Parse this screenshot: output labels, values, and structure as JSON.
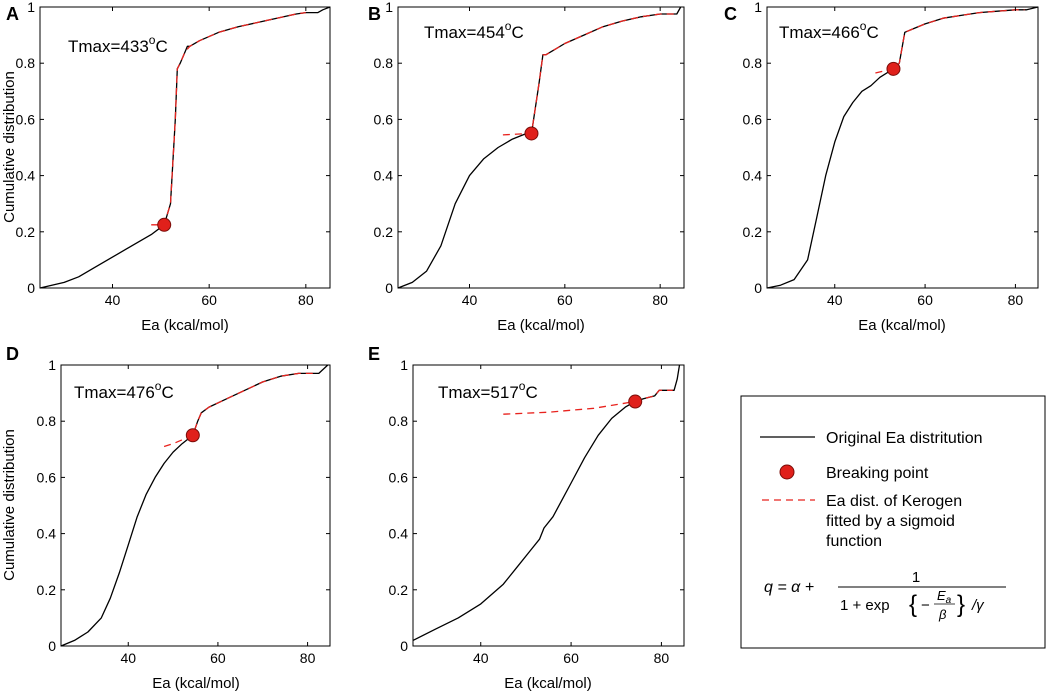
{
  "figure": {
    "ylabel": "Cumulative distribution",
    "xlabel": "Ea (kcal/mol)"
  },
  "colors": {
    "original": "#000000",
    "fit": "#e8231e",
    "point_fill": "#e0201b",
    "point_stroke": "#7a0c08"
  },
  "legend": {
    "original_label": "Original Ea distritution",
    "breaking_label": "Breaking point",
    "fit_label_line1": "Ea dist. of Kerogen",
    "fit_label_line2": "fitted by a sigmoid",
    "fit_label_line3": "function",
    "equation": {
      "lhs": "q = α +",
      "numerator": "1",
      "denominator_prefix": "1 + exp",
      "minus": "−",
      "frac_num": "E",
      "frac_num_sub": "a",
      "frac_den": "β",
      "suffix": "/γ"
    }
  },
  "chart_data": [
    {
      "panel": "A",
      "type": "line",
      "tmax_label": "Tmax=433",
      "tmax_sup": "o",
      "tmax_unit": "C",
      "xlabel": "Ea (kcal/mol)",
      "ylabel": "Cumulative distribution",
      "xlim": [
        25,
        85
      ],
      "ylim": [
        0,
        1
      ],
      "xticks": [
        40,
        60,
        80
      ],
      "yticks": [
        0,
        0.2,
        0.4,
        0.6,
        0.8,
        1
      ],
      "ytick_labels": [
        "0",
        "0.2",
        "0.4",
        "0.6",
        "0.8",
        "1"
      ],
      "series": [
        {
          "name": "Original Ea distritution",
          "x": [
            25,
            30,
            33,
            36,
            40,
            44,
            48,
            50.7,
            52,
            53,
            53.4,
            54,
            55,
            55.5,
            56,
            58,
            62,
            66,
            70,
            74,
            78,
            80,
            82.5,
            83.5,
            85
          ],
          "y": [
            0,
            0.02,
            0.04,
            0.07,
            0.11,
            0.15,
            0.19,
            0.225,
            0.3,
            0.6,
            0.78,
            0.8,
            0.84,
            0.86,
            0.86,
            0.88,
            0.91,
            0.93,
            0.945,
            0.96,
            0.975,
            0.98,
            0.98,
            0.99,
            1.0
          ]
        },
        {
          "name": "Ea dist. of Kerogen fitted by a sigmoid function",
          "x": [
            48,
            50.7,
            52,
            53,
            53.4,
            54,
            55,
            56,
            58,
            62,
            66,
            70,
            74,
            78,
            80
          ],
          "y": [
            0.225,
            0.225,
            0.3,
            0.6,
            0.78,
            0.8,
            0.84,
            0.86,
            0.88,
            0.91,
            0.93,
            0.945,
            0.96,
            0.975,
            0.98
          ]
        }
      ],
      "breaking_point": {
        "x": 50.7,
        "y": 0.225
      }
    },
    {
      "panel": "B",
      "type": "line",
      "tmax_label": "Tmax=454",
      "tmax_sup": "o",
      "tmax_unit": "C",
      "xlabel": "Ea (kcal/mol)",
      "ylabel": "",
      "xlim": [
        25,
        85
      ],
      "ylim": [
        0,
        1
      ],
      "xticks": [
        40,
        60,
        80
      ],
      "yticks": [
        0,
        0.2,
        0.4,
        0.6,
        0.8,
        1
      ],
      "ytick_labels": [
        "0",
        "0.2",
        "0.4",
        "0.6",
        "0.8",
        "1"
      ],
      "series": [
        {
          "name": "Original Ea distritution",
          "x": [
            25,
            28,
            31,
            34,
            37,
            40,
            43,
            46,
            49,
            52,
            53,
            54.6,
            55.4,
            56,
            58,
            60,
            64,
            68,
            72,
            76,
            80,
            83.5,
            84.3
          ],
          "y": [
            0,
            0.02,
            0.06,
            0.15,
            0.3,
            0.4,
            0.46,
            0.5,
            0.53,
            0.55,
            0.55,
            0.73,
            0.83,
            0.83,
            0.85,
            0.87,
            0.9,
            0.93,
            0.95,
            0.965,
            0.975,
            0.975,
            1.0
          ]
        },
        {
          "name": "Ea dist. of Kerogen fitted by a sigmoid function",
          "x": [
            47,
            53,
            54.6,
            55.4,
            56,
            58,
            60,
            64,
            68,
            72,
            76,
            80,
            83
          ],
          "y": [
            0.545,
            0.55,
            0.73,
            0.83,
            0.83,
            0.85,
            0.87,
            0.9,
            0.93,
            0.95,
            0.965,
            0.975,
            0.975
          ]
        }
      ],
      "breaking_point": {
        "x": 53,
        "y": 0.55
      }
    },
    {
      "panel": "C",
      "type": "line",
      "tmax_label": "Tmax=466",
      "tmax_sup": "o",
      "tmax_unit": "C",
      "xlabel": "Ea (kcal/mol)",
      "ylabel": "",
      "xlim": [
        25,
        85
      ],
      "ylim": [
        0,
        1
      ],
      "xticks": [
        40,
        60,
        80
      ],
      "yticks": [
        0,
        0.2,
        0.4,
        0.6,
        0.8,
        1
      ],
      "ytick_labels": [
        "0",
        "0.2",
        "0.4",
        "0.6",
        "0.8",
        "1"
      ],
      "series": [
        {
          "name": "Original Ea distritution",
          "x": [
            25,
            28,
            31,
            34,
            36,
            38,
            40,
            42,
            44,
            46,
            48,
            50,
            53,
            54.3,
            55.5,
            57,
            60,
            64,
            68,
            72,
            76,
            80,
            82.5,
            85
          ],
          "y": [
            0,
            0.01,
            0.03,
            0.1,
            0.25,
            0.4,
            0.52,
            0.61,
            0.66,
            0.7,
            0.72,
            0.75,
            0.78,
            0.8,
            0.91,
            0.92,
            0.94,
            0.96,
            0.97,
            0.98,
            0.985,
            0.99,
            0.99,
            1.0
          ]
        },
        {
          "name": "Ea dist. of Kerogen fitted by a sigmoid function",
          "x": [
            49,
            53,
            54.3,
            55.5,
            57,
            60,
            64,
            68,
            72,
            76,
            80,
            82
          ],
          "y": [
            0.765,
            0.78,
            0.8,
            0.91,
            0.92,
            0.94,
            0.96,
            0.97,
            0.98,
            0.985,
            0.99,
            0.99
          ]
        }
      ],
      "breaking_point": {
        "x": 53,
        "y": 0.78
      }
    },
    {
      "panel": "D",
      "type": "line",
      "tmax_label": "Tmax=476",
      "tmax_sup": "o",
      "tmax_unit": "C",
      "xlabel": "Ea (kcal/mol)",
      "ylabel": "Cumulative distribution",
      "xlim": [
        25,
        85
      ],
      "ylim": [
        0,
        1
      ],
      "xticks": [
        40,
        60,
        80
      ],
      "yticks": [
        0,
        0.2,
        0.4,
        0.6,
        0.8,
        1
      ],
      "ytick_labels": [
        "0",
        "0.2",
        "0.4",
        "0.6",
        "0.8",
        "1"
      ],
      "series": [
        {
          "name": "Original Ea distritution",
          "x": [
            25,
            28,
            31,
            34,
            36,
            38,
            40,
            42,
            44,
            46,
            48,
            50,
            52,
            54.4,
            55.5,
            56.3,
            58,
            62,
            66,
            70,
            74,
            78,
            82.5,
            84.5
          ],
          "y": [
            0,
            0.02,
            0.05,
            0.1,
            0.17,
            0.26,
            0.36,
            0.46,
            0.54,
            0.6,
            0.65,
            0.69,
            0.72,
            0.75,
            0.8,
            0.83,
            0.85,
            0.88,
            0.91,
            0.94,
            0.96,
            0.97,
            0.97,
            1.0
          ]
        },
        {
          "name": "Ea dist. of Kerogen fitted by a sigmoid function",
          "x": [
            48,
            50,
            54.4,
            55.5,
            56.3,
            58,
            62,
            66,
            70,
            74,
            78,
            82
          ],
          "y": [
            0.71,
            0.72,
            0.75,
            0.8,
            0.83,
            0.85,
            0.88,
            0.91,
            0.94,
            0.96,
            0.97,
            0.97
          ]
        }
      ],
      "breaking_point": {
        "x": 54.4,
        "y": 0.75
      }
    },
    {
      "panel": "E",
      "type": "line",
      "tmax_label": "Tmax=517",
      "tmax_sup": "o",
      "tmax_unit": "C",
      "xlabel": "Ea (kcal/mol)",
      "ylabel": "",
      "xlim": [
        25,
        85
      ],
      "ylim": [
        0,
        1
      ],
      "xticks": [
        40,
        60,
        80
      ],
      "yticks": [
        0,
        0.2,
        0.4,
        0.6,
        0.8,
        1
      ],
      "ytick_labels": [
        "0",
        "0.2",
        "0.4",
        "0.6",
        "0.8",
        "1"
      ],
      "series": [
        {
          "name": "Original Ea distritution",
          "x": [
            25,
            30,
            35,
            40,
            45,
            48,
            51,
            53,
            54,
            56,
            58,
            60,
            63,
            66,
            69,
            72,
            74.2,
            76,
            78.5,
            79.5,
            82.8,
            83.5,
            84
          ],
          "y": [
            0.02,
            0.06,
            0.1,
            0.15,
            0.22,
            0.28,
            0.34,
            0.38,
            0.42,
            0.46,
            0.52,
            0.58,
            0.67,
            0.75,
            0.81,
            0.85,
            0.87,
            0.88,
            0.89,
            0.91,
            0.91,
            0.95,
            1.0
          ]
        },
        {
          "name": "Ea dist. of Kerogen fitted by a sigmoid function",
          "x": [
            45,
            55,
            65,
            74.2,
            76,
            78.5,
            79.5,
            82.5
          ],
          "y": [
            0.825,
            0.832,
            0.846,
            0.87,
            0.88,
            0.89,
            0.91,
            0.91
          ]
        }
      ],
      "breaking_point": {
        "x": 74.2,
        "y": 0.87
      }
    }
  ]
}
